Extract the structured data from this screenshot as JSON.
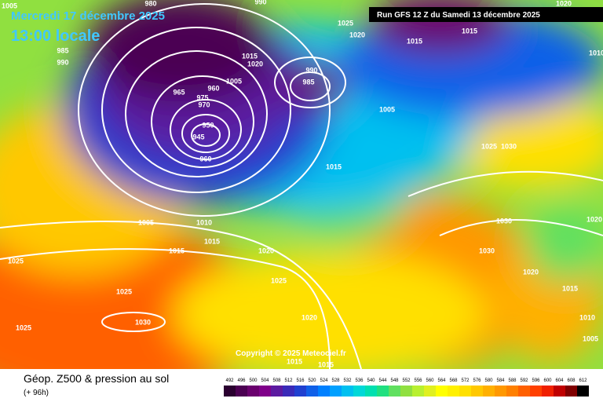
{
  "header": {
    "date": "Mercredi 17 décembre 2025",
    "time": "13:00 locale",
    "run": "Run GFS 12 Z du Samedi 13 décembre 2025"
  },
  "copyright": "Copyright © 2025 Meteociel.fr",
  "footer": {
    "title": "Géop. Z500 & pression au sol",
    "lead": "(+ 96h)"
  },
  "legend": [
    {
      "label": "492",
      "color": "#2a0030"
    },
    {
      "label": "496",
      "color": "#4b0052"
    },
    {
      "label": "500",
      "color": "#6a006e"
    },
    {
      "label": "504",
      "color": "#80008a"
    },
    {
      "label": "508",
      "color": "#5c1aa0"
    },
    {
      "label": "512",
      "color": "#3a2ab8"
    },
    {
      "label": "516",
      "color": "#2040d0"
    },
    {
      "label": "520",
      "color": "#1060e8"
    },
    {
      "label": "524",
      "color": "#0080ff"
    },
    {
      "label": "528",
      "color": "#00a0ff"
    },
    {
      "label": "532",
      "color": "#00c0f0"
    },
    {
      "label": "536",
      "color": "#00d8d8"
    },
    {
      "label": "540",
      "color": "#00e0b0"
    },
    {
      "label": "544",
      "color": "#20e080"
    },
    {
      "label": "548",
      "color": "#60e060"
    },
    {
      "label": "552",
      "color": "#90e040"
    },
    {
      "label": "556",
      "color": "#b8f030"
    },
    {
      "label": "560",
      "color": "#e0f020"
    },
    {
      "label": "564",
      "color": "#ffff00"
    },
    {
      "label": "568",
      "color": "#fff000"
    },
    {
      "label": "572",
      "color": "#ffe000"
    },
    {
      "label": "576",
      "color": "#ffc800"
    },
    {
      "label": "580",
      "color": "#ffb000"
    },
    {
      "label": "584",
      "color": "#ff9800"
    },
    {
      "label": "588",
      "color": "#ff8000"
    },
    {
      "label": "592",
      "color": "#ff6000"
    },
    {
      "label": "596",
      "color": "#ff4000"
    },
    {
      "label": "600",
      "color": "#f02000"
    },
    {
      "label": "604",
      "color": "#c00000"
    },
    {
      "label": "608",
      "color": "#800000"
    },
    {
      "label": "612",
      "color": "#000000"
    }
  ],
  "isobars": [
    "1005",
    "985",
    "990",
    "980",
    "990",
    "965",
    "975",
    "970",
    "960",
    "1005",
    "1015",
    "1020",
    "990",
    "985",
    "1025",
    "1020",
    "1015",
    "1015",
    "1020",
    "1010",
    "1005",
    "950",
    "945",
    "960",
    "1015",
    "1025",
    "1030",
    "1030",
    "1005",
    "1010",
    "1015",
    "1015",
    "1020",
    "1030",
    "1020",
    "1025",
    "1025",
    "1025",
    "1015",
    "1030",
    "1025",
    "1020",
    "1010",
    "1005",
    "1015",
    "1015",
    "1020"
  ]
}
